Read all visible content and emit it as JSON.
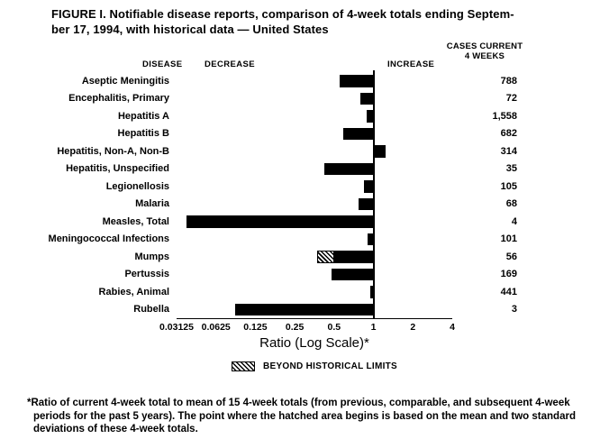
{
  "title": "FIGURE I. Notifiable disease reports, comparison of 4-week totals ending Septem-\nber 17, 1994, with historical data — United States",
  "headers": {
    "disease": "DISEASE",
    "decrease": "DECREASE",
    "increase": "INCREASE",
    "cases": "CASES CURRENT\n4 WEEKS"
  },
  "chart_data": {
    "type": "bar",
    "orientation": "horizontal",
    "scale": "log2",
    "baseline_ratio": 1,
    "axis": {
      "label": "Ratio (Log Scale)*",
      "min": 0.03125,
      "max": 4,
      "tick_values": [
        0.03125,
        0.0625,
        0.125,
        0.25,
        0.5,
        1,
        2,
        4
      ],
      "tick_labels": [
        "0.03125",
        "0.0625",
        "0.125",
        "0.25",
        "0.5",
        "1",
        "2",
        "4"
      ]
    },
    "legend": {
      "label": "BEYOND HISTORICAL LIMITS",
      "swatch": "hatched"
    },
    "rows": [
      {
        "disease": "Aseptic Meningitis",
        "ratio": 0.55,
        "cases": "788"
      },
      {
        "disease": "Encephalitis, Primary",
        "ratio": 0.79,
        "cases": "72"
      },
      {
        "disease": "Hepatitis A",
        "ratio": 0.88,
        "cases": "1,558"
      },
      {
        "disease": "Hepatitis B",
        "ratio": 0.59,
        "cases": "682"
      },
      {
        "disease": "Hepatitis, Non-A, Non-B",
        "ratio": 1.23,
        "cases": "314"
      },
      {
        "disease": "Hepatitis, Unspecified",
        "ratio": 0.42,
        "cases": "35"
      },
      {
        "disease": "Legionellosis",
        "ratio": 0.85,
        "cases": "105"
      },
      {
        "disease": "Malaria",
        "ratio": 0.77,
        "cases": "68"
      },
      {
        "disease": "Measles, Total",
        "ratio": 0.037,
        "cases": "4"
      },
      {
        "disease": "Meningococcal Infections",
        "ratio": 0.9,
        "cases": "101"
      },
      {
        "disease": "Mumps",
        "ratio": 0.37,
        "cases": "56",
        "hatch_to": 0.5
      },
      {
        "disease": "Pertussis",
        "ratio": 0.48,
        "cases": "169"
      },
      {
        "disease": "Rabies, Animal",
        "ratio": 0.95,
        "cases": "441"
      },
      {
        "disease": "Rubella",
        "ratio": 0.087,
        "cases": "3"
      }
    ]
  },
  "footnote": "*Ratio of current 4-week total to mean of 15 4-week totals (from previous, comparable, and subsequent 4-week periods for the past 5 years). The point where the hatched area begins is based on the mean and two standard deviations of these 4-week totals.",
  "colors": {
    "background": "#ffffff",
    "bar": "#000000",
    "text": "#000000"
  }
}
